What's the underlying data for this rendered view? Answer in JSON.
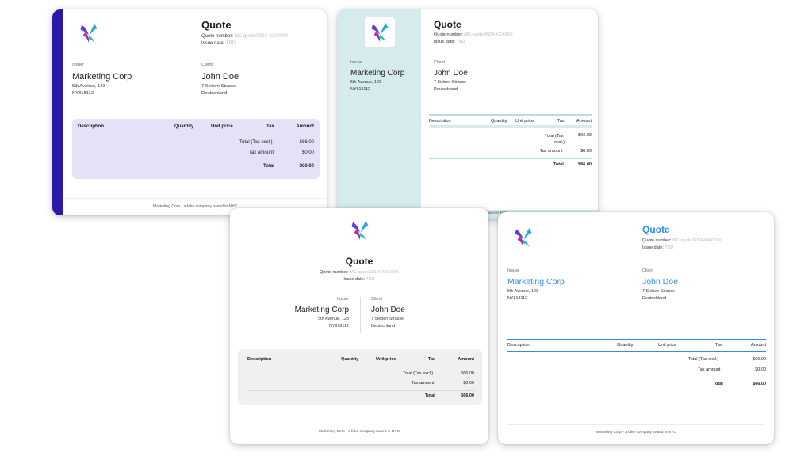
{
  "quote": {
    "title": "Quote",
    "number_label": "Quote number:",
    "number_value": "MC-quote/2024-XXXXXX",
    "date_label": "Issue date:",
    "date_value": "TBD"
  },
  "issuer": {
    "label": "Issuer",
    "name": "Marketing Corp",
    "address1": "5th Avenue, 123",
    "address2": "NY818112"
  },
  "client": {
    "label": "Client",
    "name": "John Doe",
    "address1": "7 Sieben Strasse",
    "address2": "Deutschland"
  },
  "table": {
    "headers": {
      "description": "Description",
      "quantity": "Quantity",
      "unit_price": "Unit price",
      "tax": "Tax",
      "amount": "Amount"
    },
    "totals": {
      "total_excl_label": "Total (Tax excl.)",
      "total_excl_label_part1": "Total (Tax",
      "total_excl_label_part2": "excl.)",
      "total_excl_value": "$66.00",
      "tax_label": "Tax amount",
      "tax_value": "$0.00",
      "total_label": "Total",
      "total_value": "$66.00"
    }
  },
  "footer": "Marketing Corp - a fake company based in NYC",
  "footer_partial": "based in NYC",
  "colors": {
    "stripe": "#2b1aa6",
    "lavender": "#e6e1f7",
    "teal": "#d5ebec",
    "blue": "#2f8fe8"
  }
}
